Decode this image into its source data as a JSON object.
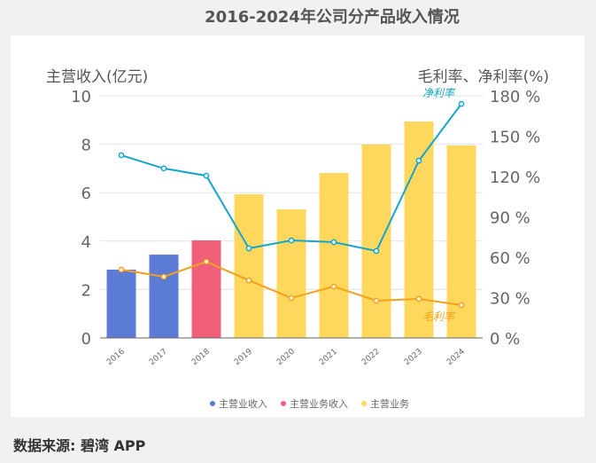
{
  "chart_data": {
    "type": "bar+line",
    "title": "2016-2024年公司分产品收入情况",
    "categories": [
      "2016",
      "2017",
      "2018",
      "2019",
      "2020",
      "2021",
      "2022",
      "2023",
      "2024"
    ],
    "ylabel_left": "主营收入(亿元)",
    "ylabel_right": "毛利率、净利率(%)",
    "ylim_left": [
      0,
      10
    ],
    "yticks_left": [
      "0",
      "2",
      "4",
      "6",
      "8",
      "10"
    ],
    "ylim_right": [
      0,
      180
    ],
    "yticks_right": [
      "0 %",
      "30 %",
      "60 %",
      "90 %",
      "120 %",
      "150 %",
      "180 %"
    ],
    "grid": true,
    "legend_position": "bottom",
    "bar_series": [
      {
        "name": "主营业收入",
        "color": "#5b7bd5",
        "values": [
          2.82,
          3.44,
          null,
          null,
          null,
          null,
          null,
          null,
          null
        ]
      },
      {
        "name": "主营业务收入",
        "color": "#f0607a",
        "values": [
          null,
          null,
          4.03,
          null,
          null,
          null,
          null,
          null,
          null
        ]
      },
      {
        "name": "主营业务",
        "color": "#fdd85d",
        "values": [
          null,
          null,
          null,
          5.93,
          5.31,
          6.81,
          7.99,
          8.94,
          7.95
        ]
      }
    ],
    "line_series": [
      {
        "name": "净利率",
        "color": "#14a5cc",
        "values": [
          135.8,
          126,
          120.6,
          66.6,
          72.5,
          71.2,
          64.6,
          131.8,
          174
        ]
      },
      {
        "name": "毛利率",
        "color": "#f5a01c",
        "values": [
          50.8,
          45.5,
          56.7,
          42.8,
          29.7,
          38.2,
          27.7,
          29,
          24.4
        ]
      }
    ]
  },
  "footer": "数据来源: 碧湾 APP"
}
